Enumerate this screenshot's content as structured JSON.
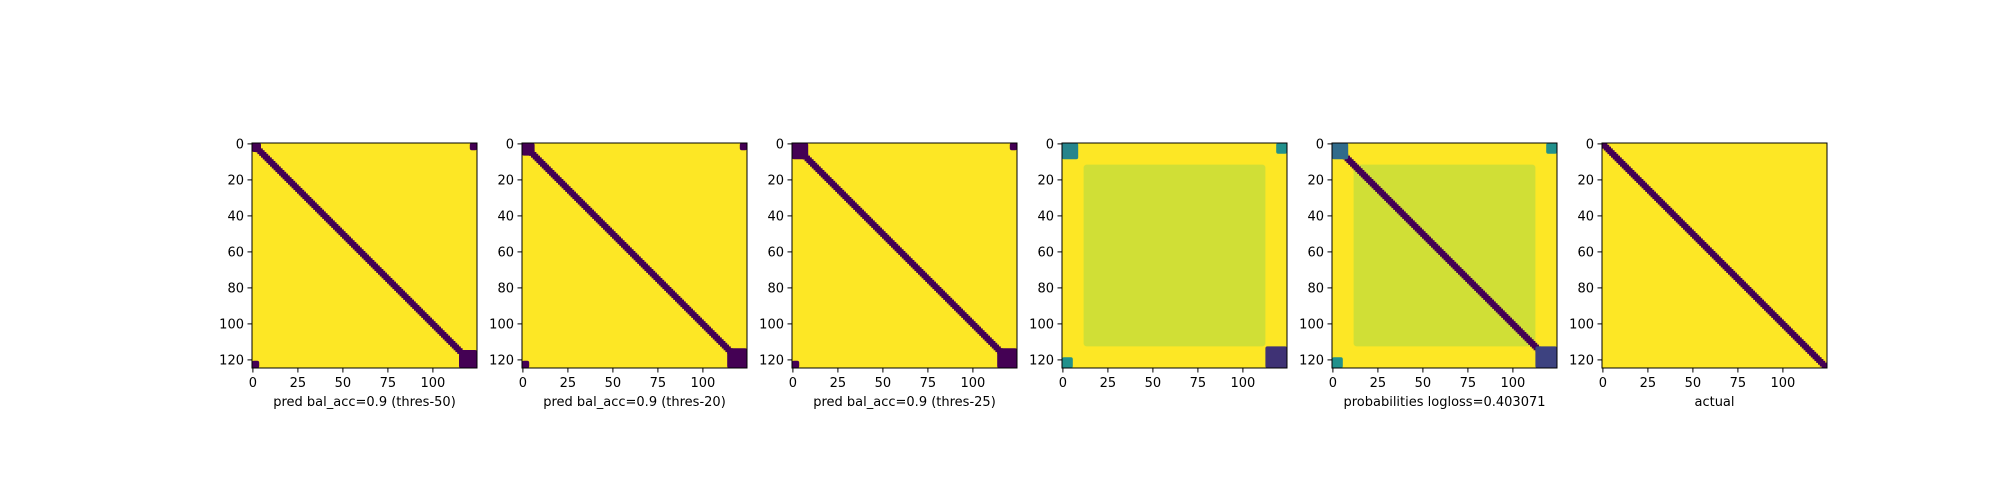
{
  "figure": {
    "background": "#ffffff",
    "colors": {
      "low": "#440154",
      "high": "#fde725",
      "mid_teal": "#21918c",
      "light_green": "#dce319"
    }
  },
  "chart_data": [
    {
      "type": "heatmap",
      "title": "",
      "xlabel": "pred bal_acc=0.9 (thres-50)",
      "ylabel": "",
      "matrix_size": 125,
      "xlim": [
        -0.5,
        124.5
      ],
      "ylim": [
        124.5,
        -0.5
      ],
      "xticks": [
        0,
        25,
        50,
        75,
        100
      ],
      "yticks": [
        0,
        20,
        40,
        60,
        80,
        100,
        120
      ],
      "background_value": 1,
      "diagonal_value": 0,
      "diagonal_band_halfwidth": 2,
      "corner_blocks": [
        {
          "rows": [
            0,
            4
          ],
          "cols": [
            0,
            4
          ],
          "value": 0
        },
        {
          "rows": [
            115,
            124
          ],
          "cols": [
            115,
            124
          ],
          "value": 0
        },
        {
          "rows": [
            0,
            3
          ],
          "cols": [
            121,
            124
          ],
          "value": 0
        },
        {
          "rows": [
            121,
            124
          ],
          "cols": [
            0,
            3
          ],
          "value": 0
        }
      ],
      "inner_block": null,
      "grid": false
    },
    {
      "type": "heatmap",
      "title": "",
      "xlabel": "pred bal_acc=0.9 (thres-20)",
      "ylabel": "",
      "matrix_size": 125,
      "xlim": [
        -0.5,
        124.5
      ],
      "ylim": [
        124.5,
        -0.5
      ],
      "xticks": [
        0,
        25,
        50,
        75,
        100
      ],
      "yticks": [
        0,
        20,
        40,
        60,
        80,
        100,
        120
      ],
      "background_value": 1,
      "diagonal_value": 0,
      "diagonal_band_halfwidth": 2,
      "corner_blocks": [
        {
          "rows": [
            0,
            6
          ],
          "cols": [
            0,
            6
          ],
          "value": 0
        },
        {
          "rows": [
            114,
            124
          ],
          "cols": [
            114,
            124
          ],
          "value": 0
        },
        {
          "rows": [
            0,
            3
          ],
          "cols": [
            121,
            124
          ],
          "value": 0
        },
        {
          "rows": [
            121,
            124
          ],
          "cols": [
            0,
            3
          ],
          "value": 0
        }
      ],
      "inner_block": null,
      "grid": false
    },
    {
      "type": "heatmap",
      "title": "",
      "xlabel": "pred bal_acc=0.9 (thres-25)",
      "ylabel": "",
      "matrix_size": 125,
      "xlim": [
        -0.5,
        124.5
      ],
      "ylim": [
        124.5,
        -0.5
      ],
      "xticks": [
        0,
        25,
        50,
        75,
        100
      ],
      "yticks": [
        0,
        20,
        40,
        60,
        80,
        100,
        120
      ],
      "background_value": 1,
      "diagonal_value": 0,
      "diagonal_band_halfwidth": 2,
      "corner_blocks": [
        {
          "rows": [
            0,
            8
          ],
          "cols": [
            0,
            8
          ],
          "value": 0
        },
        {
          "rows": [
            114,
            124
          ],
          "cols": [
            114,
            124
          ],
          "value": 0
        },
        {
          "rows": [
            0,
            3
          ],
          "cols": [
            121,
            124
          ],
          "value": 0
        },
        {
          "rows": [
            121,
            124
          ],
          "cols": [
            0,
            3
          ],
          "value": 0
        }
      ],
      "inner_block": null,
      "grid": false
    },
    {
      "type": "heatmap",
      "title": "",
      "xlabel": "",
      "ylabel": "",
      "matrix_size": 125,
      "xlim": [
        -0.5,
        124.5
      ],
      "ylim": [
        124.5,
        -0.5
      ],
      "xticks": [
        0,
        25,
        50,
        75,
        100
      ],
      "yticks": [
        0,
        20,
        40,
        60,
        80,
        100,
        120
      ],
      "background_value": 1,
      "diagonal_value": null,
      "diagonal_band_halfwidth": 0,
      "corner_blocks": [
        {
          "rows": [
            0,
            8
          ],
          "cols": [
            0,
            8
          ],
          "value": 0.45
        },
        {
          "rows": [
            113,
            124
          ],
          "cols": [
            113,
            124
          ],
          "value": 0.15
        },
        {
          "rows": [
            0,
            5
          ],
          "cols": [
            119,
            124
          ],
          "value": 0.5
        },
        {
          "rows": [
            119,
            124
          ],
          "cols": [
            0,
            5
          ],
          "value": 0.5
        }
      ],
      "inner_block": {
        "rows": [
          12,
          112
        ],
        "cols": [
          12,
          112
        ],
        "value": 0.93
      },
      "grid": false
    },
    {
      "type": "heatmap",
      "title": "",
      "xlabel": "probabilities logloss=0.403071",
      "ylabel": "",
      "matrix_size": 125,
      "xlim": [
        -0.5,
        124.5
      ],
      "ylim": [
        124.5,
        -0.5
      ],
      "xticks": [
        0,
        25,
        50,
        75,
        100
      ],
      "yticks": [
        0,
        20,
        40,
        60,
        80,
        100,
        120
      ],
      "background_value": 1,
      "diagonal_value": 0,
      "diagonal_band_halfwidth": 2,
      "corner_blocks": [
        {
          "rows": [
            0,
            8
          ],
          "cols": [
            0,
            8
          ],
          "value": 0.35
        },
        {
          "rows": [
            113,
            124
          ],
          "cols": [
            113,
            124
          ],
          "value": 0.2
        },
        {
          "rows": [
            0,
            5
          ],
          "cols": [
            119,
            124
          ],
          "value": 0.5
        },
        {
          "rows": [
            119,
            124
          ],
          "cols": [
            0,
            5
          ],
          "value": 0.5
        }
      ],
      "inner_block": {
        "rows": [
          12,
          112
        ],
        "cols": [
          12,
          112
        ],
        "value": 0.93
      },
      "grid": false
    },
    {
      "type": "heatmap",
      "title": "",
      "xlabel": "actual",
      "ylabel": "",
      "matrix_size": 125,
      "xlim": [
        -0.5,
        124.5
      ],
      "ylim": [
        124.5,
        -0.5
      ],
      "xticks": [
        0,
        25,
        50,
        75,
        100
      ],
      "yticks": [
        0,
        20,
        40,
        60,
        80,
        100,
        120
      ],
      "background_value": 1,
      "diagonal_value": 0,
      "diagonal_band_halfwidth": 2,
      "corner_blocks": [],
      "inner_block": null,
      "grid": false
    }
  ]
}
